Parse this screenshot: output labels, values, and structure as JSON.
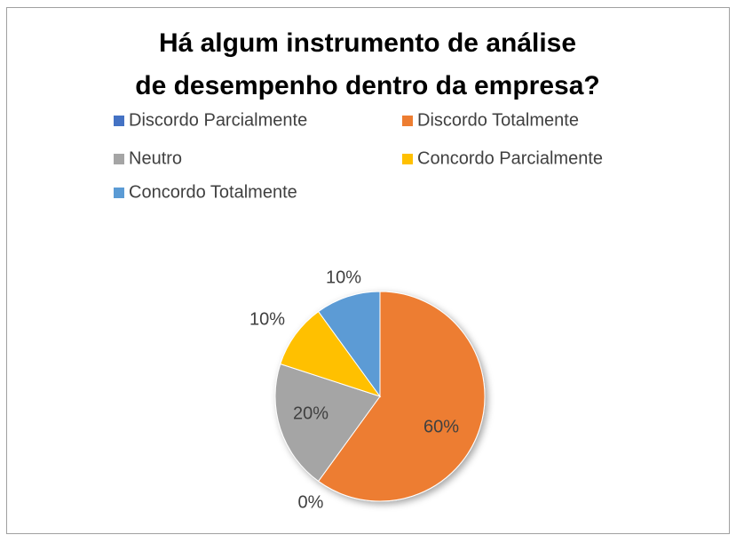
{
  "chart_data": {
    "type": "pie",
    "title": "Há algum instrumento de análise de desempenho dentro da empresa?",
    "categories": [
      "Discordo Parcialmente",
      "Discordo Totalmente",
      "Neutro",
      "Concordo Parcialmente",
      "Concordo Totalmente"
    ],
    "values": [
      0,
      60,
      20,
      10,
      10
    ],
    "value_labels": [
      "0%",
      "60%",
      "20%",
      "10%",
      "10%"
    ],
    "colors": [
      "#4472c4",
      "#ed7d31",
      "#a5a5a5",
      "#ffc000",
      "#5b9bd5"
    ],
    "legend": "top"
  }
}
